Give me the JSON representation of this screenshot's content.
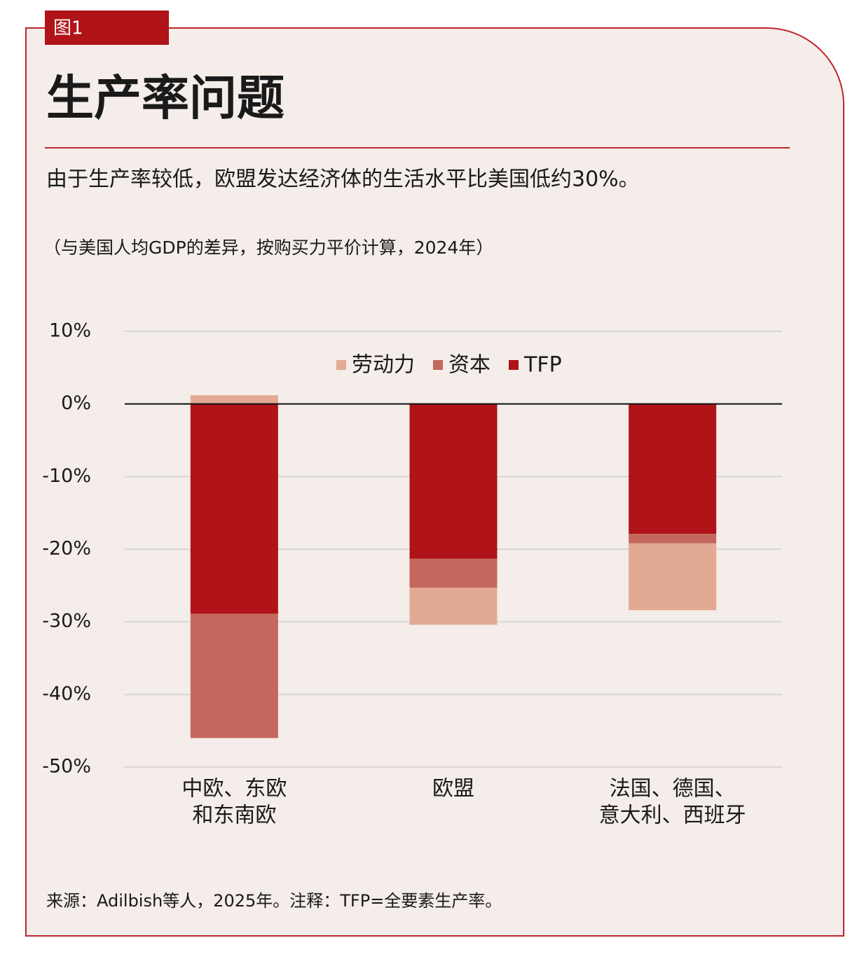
{
  "figure_label": "图1",
  "chart_data": {
    "type": "stacked_bar",
    "title": "生产率问题",
    "subtitle": "由于生产率较低，欧盟发达经济体的生活水平比美国低约30%。",
    "note": "（与美国人均GDP的差异，按购买力平价计算，2024年）",
    "source": "来源：Adilbish等人，2025年。注释：TFP=全要素生产率。",
    "categories": [
      [
        "中欧、东欧",
        "和东南欧"
      ],
      [
        "欧盟"
      ],
      [
        "法国、德国、",
        "意大利、西班牙"
      ]
    ],
    "series": [
      {
        "name": "劳动力",
        "color": "#e3aa93",
        "values": [
          1.2,
          -5.1,
          -9.2
        ]
      },
      {
        "name": "资本",
        "color": "#c4675c",
        "values": [
          -17.1,
          -4.0,
          -1.3
        ]
      },
      {
        "name": "TFP",
        "color": "#b01318",
        "values": [
          -28.9,
          -21.3,
          -17.9
        ]
      }
    ],
    "ylim": [
      -50,
      10
    ],
    "yticks": [
      {
        "value": 10,
        "label": "10%"
      },
      {
        "value": 0,
        "label": "0%"
      },
      {
        "value": -10,
        "label": "-10%"
      },
      {
        "value": -20,
        "label": "-20%"
      },
      {
        "value": -30,
        "label": "-30%"
      },
      {
        "value": -40,
        "label": "-40%"
      },
      {
        "value": -50,
        "label": "-50%"
      }
    ],
    "grid": true,
    "legend": "top"
  }
}
